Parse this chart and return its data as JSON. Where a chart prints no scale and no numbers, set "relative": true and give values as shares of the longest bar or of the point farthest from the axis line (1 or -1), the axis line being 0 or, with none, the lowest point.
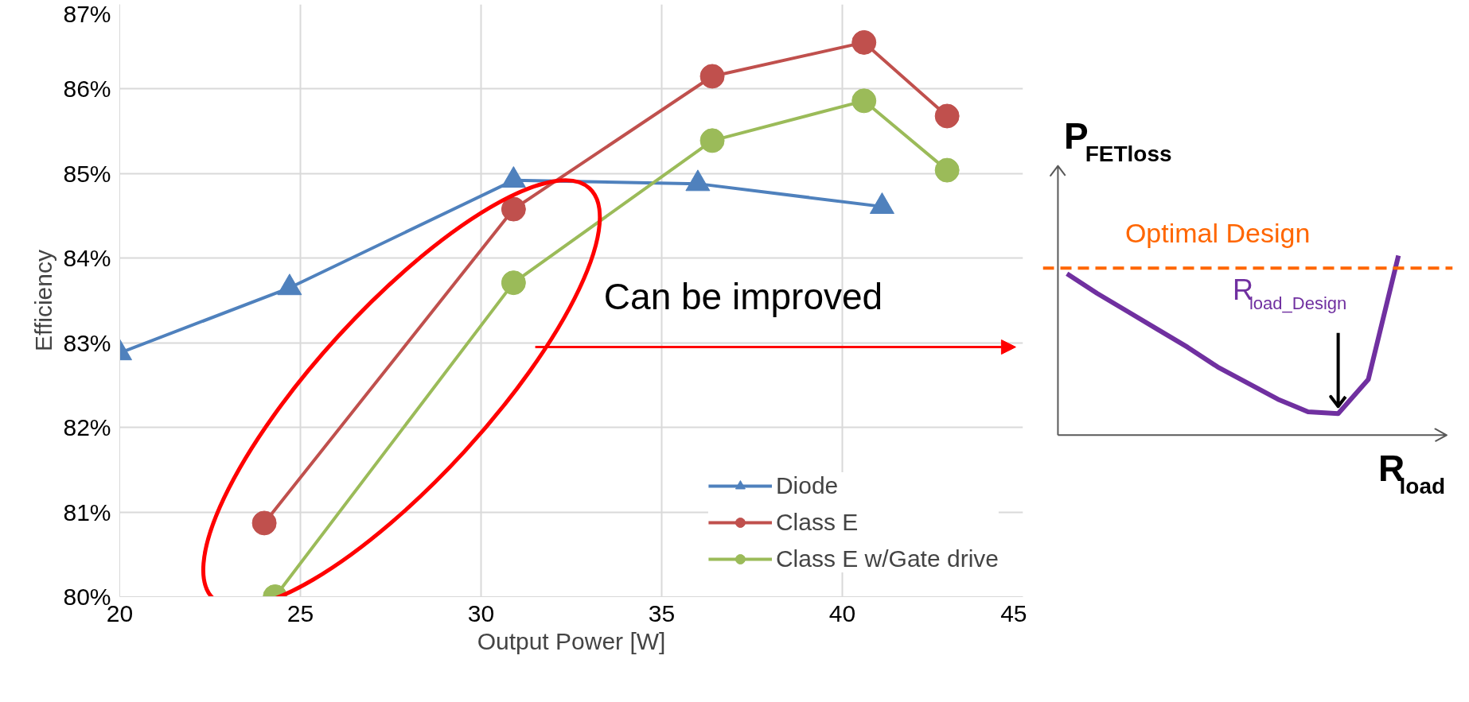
{
  "chart_data": [
    {
      "type": "line",
      "xlabel": "Output Power [W]",
      "ylabel": "Efficiency",
      "xlim": [
        20,
        45
      ],
      "xticks": [
        20,
        25,
        30,
        35,
        40,
        45
      ],
      "ylim": [
        80,
        87
      ],
      "yticks": [
        {
          "value": 80,
          "label": "80%"
        },
        {
          "value": 81,
          "label": "81%"
        },
        {
          "value": 82,
          "label": "82%"
        },
        {
          "value": 83,
          "label": "83%"
        },
        {
          "value": 84,
          "label": "84%"
        },
        {
          "value": 85,
          "label": "85%"
        },
        {
          "value": 86,
          "label": "86%"
        },
        {
          "value": 87,
          "label": "87%"
        }
      ],
      "grid": true,
      "legend": "bottom right",
      "line_style": "solid",
      "series": [
        {
          "name": "Diode",
          "color": "#4f81bd",
          "marker": "triangle",
          "x": [
            20,
            24.7,
            30.9,
            36.0,
            41.1
          ],
          "values": [
            82.88,
            83.65,
            84.92,
            84.88,
            84.61
          ]
        },
        {
          "name": "Class E",
          "color": "#c0504d",
          "marker": "circle",
          "x": [
            24.0,
            30.9,
            36.4,
            40.6,
            42.9
          ],
          "values": [
            80.87,
            84.58,
            86.15,
            86.55,
            85.68
          ]
        },
        {
          "name": "Class E w/Gate drive",
          "color": "#9bbb59",
          "marker": "circle",
          "x": [
            24.3,
            30.9,
            36.4,
            40.6,
            42.9
          ],
          "values": [
            80.0,
            83.71,
            85.39,
            85.86,
            85.04
          ]
        }
      ],
      "annotations": [
        "Can be improved"
      ]
    },
    {
      "type": "line",
      "relative": true,
      "xlabel": "R$_{load}$",
      "ylabel": "P$_{FETloss}$",
      "categories": [
        null,
        null,
        null,
        null,
        null,
        null,
        null,
        null,
        null,
        null,
        null,
        null
      ],
      "series": [
        {
          "color": "#7030a0",
          "values": [
            0.9,
            0.79,
            0.69,
            0.59,
            0.49,
            0.38,
            0.29,
            0.2,
            0.13,
            0.12,
            0.31,
            1.0
          ]
        }
      ],
      "ref_lines": [
        {
          "axis": "y",
          "value": 0.93,
          "label": "Optimal Design",
          "color": "#ff6600",
          "line_style": "dashed"
        }
      ],
      "annotations": [
        "R$_{load_Design}$"
      ]
    }
  ]
}
